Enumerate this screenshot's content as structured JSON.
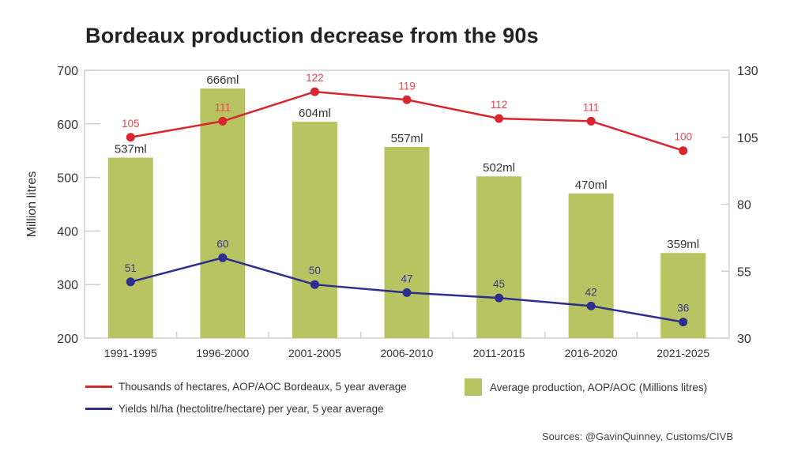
{
  "chart_data": {
    "type": "bar+line",
    "title": "Bordeaux production decrease from the 90s",
    "ylabel": "Million litres",
    "ylim": [
      200,
      700
    ],
    "yticks": [
      200,
      300,
      400,
      500,
      600,
      700
    ],
    "y2lim": [
      30,
      130
    ],
    "y2ticks": [
      30,
      55,
      80,
      105,
      130
    ],
    "grid": false,
    "legend_placement": "bottom",
    "categories": [
      "1991-1995",
      "1996-2000",
      "2001-2005",
      "2006-2010",
      "2011-2015",
      "2016-2020",
      "2021-2025"
    ],
    "bars": {
      "name": "Average production, AOP/AOC (Millions litres)",
      "axis": "left",
      "color": "#b8c462",
      "values": [
        537,
        666,
        604,
        557,
        502,
        470,
        359
      ],
      "labels": [
        "537ml",
        "666ml",
        "604ml",
        "557ml",
        "502ml",
        "470ml",
        "359ml"
      ]
    },
    "series": [
      {
        "name": "Thousands of hectares, AOP/AOC Bordeaux, 5 year average",
        "axis": "right",
        "color": "#d7262e",
        "values": [
          105,
          111,
          122,
          119,
          112,
          111,
          100
        ]
      },
      {
        "name": "Yields hl/ha (hectolitre/hectare) per year, 5 year average",
        "axis": "right",
        "color": "#2e2e8f",
        "values": [
          51,
          60,
          50,
          47,
          45,
          42,
          36
        ]
      }
    ]
  },
  "source": "Sources: @GavinQuinney, Customs/CIVB"
}
